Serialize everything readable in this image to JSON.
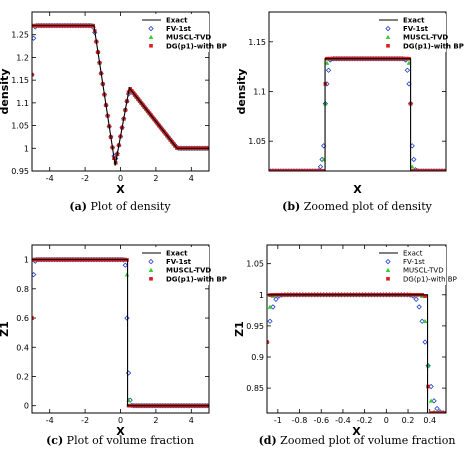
{
  "legend_entries": [
    "Exact",
    "FV-1st",
    "MUSCL-TVD",
    "DG(p1)-with BP"
  ],
  "colors": {
    "Exact": "#000000",
    "FV-1st": "#1f3fd0",
    "MUSCL-TVD": "#2ecc2e",
    "DG(p1)-with BP": "#d81e1e"
  },
  "chart_data": [
    {
      "type": "line",
      "caption_tag": "(a)",
      "caption_text": "Plot of density",
      "xlabel": "X",
      "ylabel": "density",
      "xlim": [
        -5,
        5
      ],
      "ylim": [
        0.95,
        1.3
      ],
      "xticks": [
        -4,
        -2,
        0,
        2,
        4
      ],
      "yticks": [
        0.95,
        1,
        1.05,
        1.1,
        1.15,
        1.2,
        1.25
      ],
      "ytick_labels": [
        "0.95",
        "1",
        "1.05",
        "1.1",
        "1.15",
        "1.2",
        "1.25"
      ],
      "legend_bold": true,
      "legend_position": "top-right",
      "series": [
        {
          "name": "Exact",
          "x": [
            -5,
            -1.5,
            -0.3,
            0.5,
            3.2,
            5
          ],
          "y": [
            1.27,
            1.27,
            0.962,
            1.133,
            1.0,
            1.0
          ]
        }
      ]
    },
    {
      "type": "line",
      "caption_tag": "(b)",
      "caption_text": "Zoomed plot of density",
      "xlabel": "X",
      "ylabel": "density",
      "xlim": [
        -1.5,
        4.5
      ],
      "ylim": [
        1.02,
        1.18
      ],
      "xticks": [],
      "yticks": [
        1.05,
        1.1,
        1.15
      ],
      "ytick_labels": [
        "1.05",
        "1.1",
        "1.15"
      ],
      "legend_bold": true,
      "legend_position": "top-right",
      "series": [
        {
          "name": "Exact",
          "x": [
            0.4,
            0.4,
            3.3,
            3.3
          ],
          "y": [
            1.02,
            1.133,
            1.133,
            1.02
          ]
        }
      ]
    },
    {
      "type": "line",
      "caption_tag": "(c)",
      "caption_text": "Plot of volume fraction",
      "xlabel": "X",
      "ylabel": "Z1",
      "xlim": [
        -5,
        5
      ],
      "ylim": [
        -0.05,
        1.1
      ],
      "xticks": [
        -4,
        -2,
        0,
        2,
        4
      ],
      "yticks": [
        0,
        0.2,
        0.4,
        0.6,
        0.8,
        1
      ],
      "ytick_labels": [
        "0",
        "0.2",
        "0.4",
        "0.6",
        "0.8",
        "1"
      ],
      "legend_bold": true,
      "legend_position": "top-right",
      "series": [
        {
          "name": "Exact",
          "x": [
            -5,
            0.4,
            0.4,
            5
          ],
          "y": [
            1,
            1,
            0,
            0
          ]
        }
      ]
    },
    {
      "type": "line",
      "caption_tag": "(d)",
      "caption_text": "Zoomed plot of volume fraction",
      "xlabel": "X",
      "ylabel": "Z1",
      "xlim": [
        -1.1,
        0.55
      ],
      "ylim": [
        0.81,
        1.08
      ],
      "xticks": [
        -1,
        -0.8,
        -0.6,
        -0.4,
        -0.2,
        0,
        0.2,
        0.4
      ],
      "yticks": [
        0.85,
        0.9,
        0.95,
        1,
        1.05
      ],
      "ytick_labels": [
        "0.85",
        "0.9",
        "0.95",
        "1",
        "1.05"
      ],
      "legend_bold": false,
      "legend_position": "top-right",
      "series": [
        {
          "name": "Exact",
          "x": [
            -1.1,
            0.38,
            0.38
          ],
          "y": [
            1,
            1,
            0.81
          ]
        }
      ]
    }
  ]
}
